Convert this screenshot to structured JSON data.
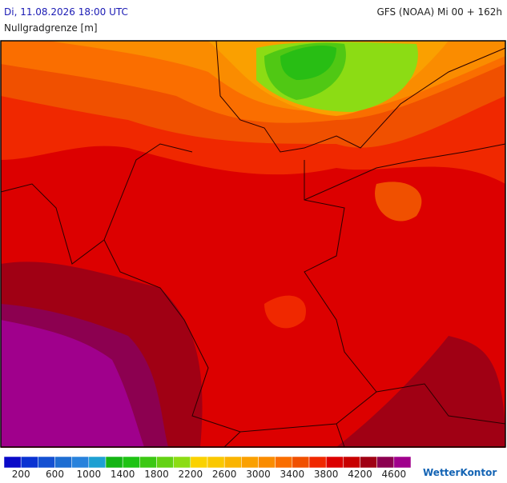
{
  "header": {
    "left": "Di, 11.08.2026 18:00 UTC",
    "right": "GFS (NOAA) Mi 00 + 162h",
    "subtitle": "Nullgradgrenze [m]"
  },
  "legend": {
    "labels": [
      200,
      600,
      1000,
      1400,
      1800,
      2200,
      2600,
      3000,
      3400,
      3800,
      4200,
      4600
    ],
    "colors": [
      "#0a0ac8",
      "#0a32d2",
      "#1450d2",
      "#1e6ed2",
      "#2882dc",
      "#1ea0d2",
      "#14b414",
      "#1ec314",
      "#3cc814",
      "#64d214",
      "#8cdc14",
      "#fad200",
      "#fac800",
      "#fab400",
      "#faa000",
      "#fa8c00",
      "#fa6e00",
      "#f05000",
      "#f02800",
      "#dc0000",
      "#c80000",
      "#a00014",
      "#8c0050",
      "#a0008c"
    ]
  },
  "brand": "WetterKontor"
}
